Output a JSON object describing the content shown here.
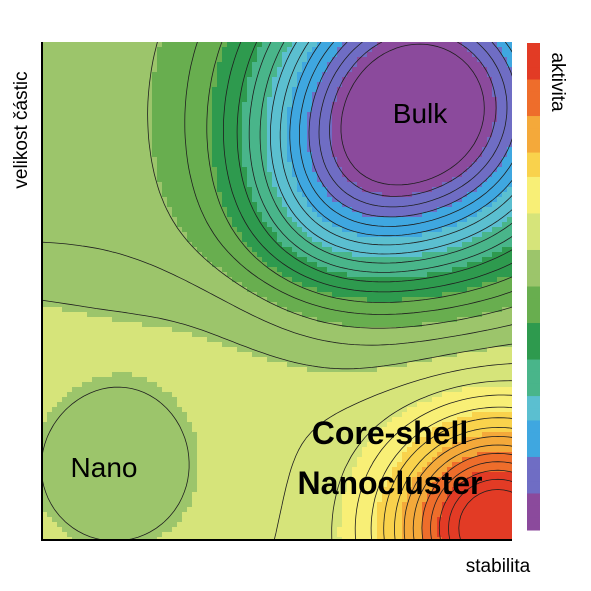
{
  "chart_data": {
    "type": "heatmap",
    "title": "",
    "xlabel": "stabilita",
    "ylabel": "velikost částic",
    "colorbar_label": "aktivita",
    "x_range": [
      0,
      1
    ],
    "y_range": [
      0,
      1
    ],
    "grid": false,
    "colorbar_position": "right",
    "colormap": [
      "#8B4A9C",
      "#6F6DC4",
      "#3FA7E0",
      "#5BBFD0",
      "#49B58A",
      "#2E9A4E",
      "#68AE4F",
      "#9CC56B",
      "#D6E47A",
      "#F8EF76",
      "#F9D24C",
      "#F4A93A",
      "#EE6D2B",
      "#E23B25"
    ],
    "regions": [
      {
        "label": "Bulk",
        "x": 0.84,
        "y": 0.86,
        "activity": "lowest"
      },
      {
        "label": "Nano",
        "x": 0.12,
        "y": 0.13,
        "activity": "low-medium"
      },
      {
        "label": "Core-shell\nNanocluster",
        "x": 0.96,
        "y": 0.06,
        "activity": "highest"
      }
    ],
    "labels": {
      "bulk": "Bulk",
      "nano": "Nano",
      "core_shell_line1": "Core-shell",
      "core_shell_line2": "Nanocluster"
    }
  }
}
